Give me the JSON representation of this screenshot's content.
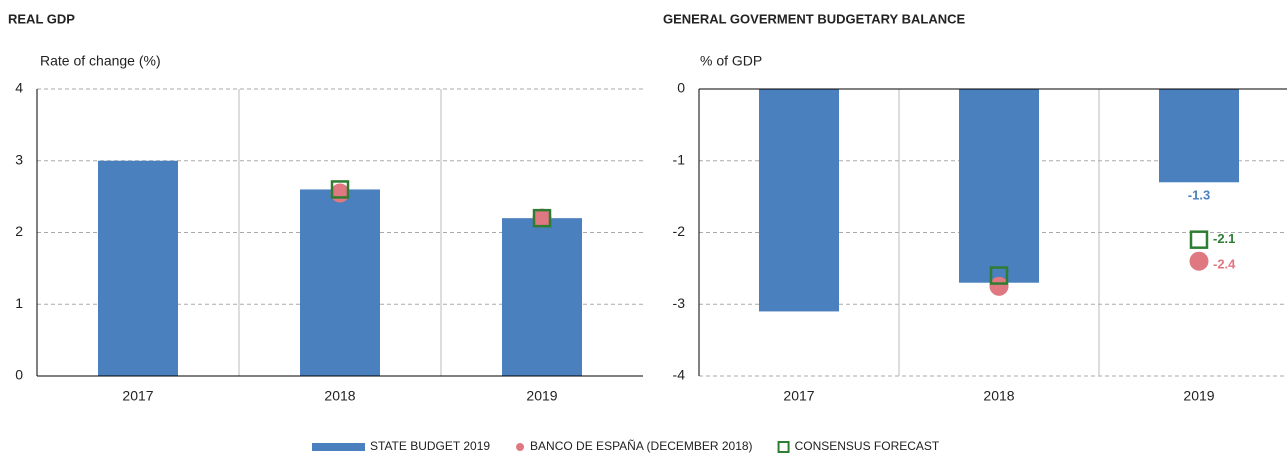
{
  "chart_data": [
    {
      "type": "bar",
      "title": "REAL GDP",
      "ylabel": "Rate of change (%)",
      "categories": [
        "2017",
        "2018",
        "2019"
      ],
      "ylim": [
        0,
        4
      ],
      "yticks": [
        0,
        1,
        2,
        3,
        4
      ],
      "grid": true,
      "series": [
        {
          "name": "STATE BUDGET 2019",
          "color": "#4a80bd",
          "marker": "bar",
          "values": [
            3.0,
            2.6,
            2.2
          ]
        },
        {
          "name": "BANCO DE ESPAÑA (DECEMBER  2018)",
          "color": "#e07882",
          "marker": "circle",
          "values": [
            null,
            2.55,
            2.2
          ]
        },
        {
          "name": "CONSENSUS FORECAST",
          "color": "#2e7d32",
          "marker": "square",
          "values": [
            null,
            2.6,
            2.2
          ]
        }
      ]
    },
    {
      "type": "bar",
      "title": "GENERAL GOVERMENT BUDGETARY BALANCE",
      "ylabel": "% of GDP",
      "categories": [
        "2017",
        "2018",
        "2019"
      ],
      "ylim": [
        -4,
        0
      ],
      "yticks": [
        0,
        -1,
        -2,
        -3,
        -4
      ],
      "grid": true,
      "series": [
        {
          "color": "#4a80bd",
          "marker": "bar",
          "values": [
            -3.1,
            -2.7,
            -1.3
          ],
          "value_labels": [
            null,
            null,
            "-1.3"
          ]
        },
        {
          "color": "#e07882",
          "marker": "circle",
          "values": [
            null,
            -2.75,
            -2.4
          ],
          "value_labels": [
            null,
            null,
            "-2.4"
          ]
        },
        {
          "color": "#2e7d32",
          "marker": "square",
          "values": [
            null,
            -2.6,
            -2.1
          ],
          "value_labels": [
            null,
            null,
            "-2.1"
          ]
        }
      ]
    }
  ]
}
